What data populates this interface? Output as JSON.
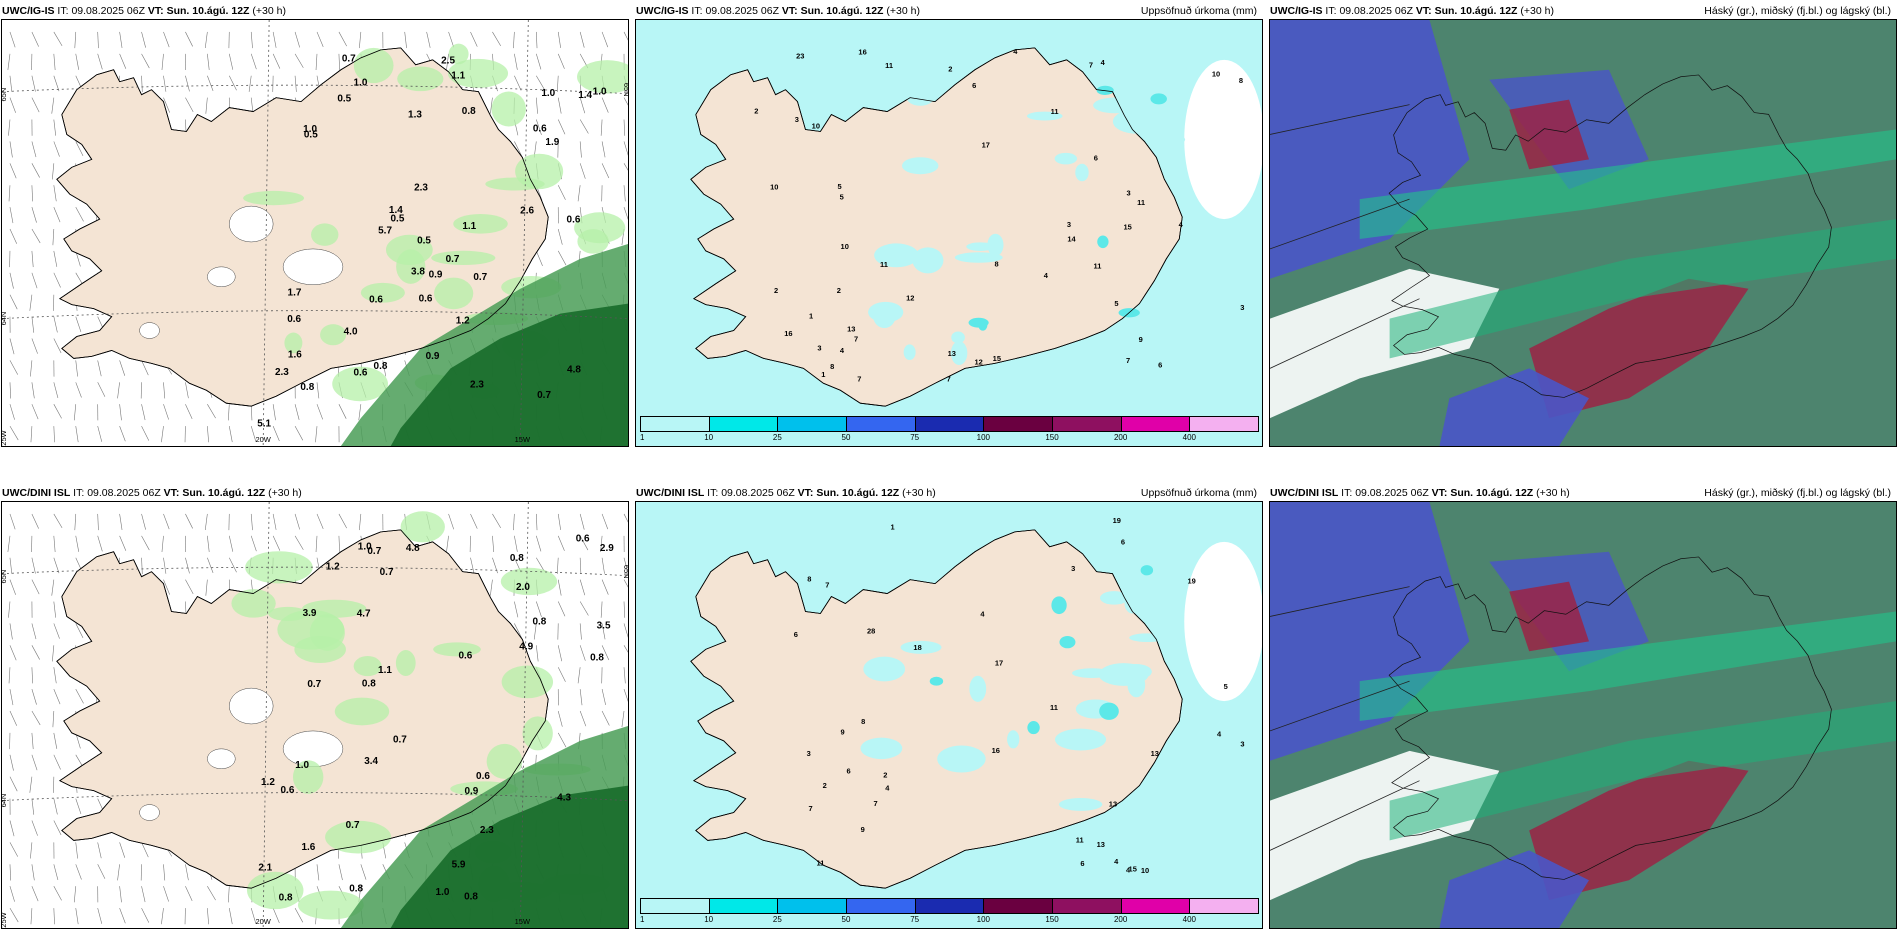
{
  "colors": {
    "land": "#f4e4d4",
    "precip_light": "#b8f6f6",
    "precip_medium": "#5ce8e8",
    "green_light": "#b6f0a8",
    "green_dark": "#176b2a",
    "cloud_high": "#2e6e55",
    "cloud_mid": "#4a55c8",
    "cloud_low": "#9b2345"
  },
  "panels": [
    {
      "model": "UWC/IG-IS",
      "it_label": "IT:",
      "it_value": "09.08.2025 06Z",
      "vt_label": "VT:",
      "vt_value": "Sun. 10.ágú. 12Z",
      "lead": "(+30 h)",
      "product": "",
      "labels": [
        "0.5",
        "0.6",
        "0.5",
        "0.7",
        "0.6",
        "0.5",
        "1.1",
        "0.6",
        "0.6",
        "1.4",
        "0.6",
        "1.0",
        "1.0",
        "1.0",
        "0.8",
        "1.1",
        "0.8",
        "1.9",
        "2.5",
        "2.3",
        "1.7",
        "1.4",
        "2.6",
        "2.3",
        "3.8",
        "4.8",
        "4.0",
        "2.3",
        "5.7",
        "1.0",
        "0.7",
        "0.6",
        "0.9",
        "0.7",
        "1.2",
        "0.8",
        "0.9",
        "5.1",
        "0.5",
        "0.7",
        "1.6",
        "1.3"
      ],
      "axis": {
        "lat1": "65N",
        "lat2": "64N",
        "lon1": "25W",
        "lon2": "20W",
        "lon3": "15W",
        "lat1r": "65N"
      }
    },
    {
      "model": "UWC/IG-IS",
      "it_label": "IT:",
      "it_value": "09.08.2025 06Z",
      "vt_label": "VT:",
      "vt_value": "Sun. 10.ágú. 12Z",
      "lead": "(+30 h)",
      "product": "Uppsöfnuð úrkoma (mm)",
      "labels": [
        "2",
        "4",
        "3",
        "4",
        "3",
        "1",
        "11",
        "5",
        "15",
        "10",
        "6",
        "7",
        "9",
        "7",
        "5",
        "13",
        "14",
        "2",
        "4",
        "2",
        "4",
        "12",
        "7",
        "3",
        "6",
        "17",
        "3",
        "16",
        "5",
        "10",
        "15",
        "3",
        "2",
        "1",
        "7",
        "11",
        "12",
        "16",
        "23",
        "10",
        "8",
        "11",
        "6",
        "4",
        "11",
        "7",
        "10",
        "8",
        "13",
        "11",
        "8"
      ],
      "colorbar": [
        "1",
        "10",
        "25",
        "50",
        "75",
        "100",
        "150",
        "200",
        "400"
      ]
    },
    {
      "model": "UWC/IG-IS",
      "it_label": "IT:",
      "it_value": "09.08.2025 06Z",
      "vt_label": "VT:",
      "vt_value": "Sun. 10.ágú. 12Z",
      "lead": "(+30 h)",
      "product": "Háský (gr.), miðský (fj.bl.) og lágský (bl.)"
    },
    {
      "model": "UWC/DINI ISL",
      "it_label": "IT:",
      "it_value": "09.08.2025 06Z",
      "vt_label": "VT:",
      "vt_value": "Sun. 10.ágú. 12Z",
      "lead": "(+30 h)",
      "product": "",
      "labels": [
        "0.6",
        "0.8",
        "0.7",
        "0.6",
        "0.8",
        "0.7",
        "2.3",
        "3.5",
        "0.6",
        "0.6",
        "2.9",
        "0.8",
        "0.8",
        "0.7",
        "2.0",
        "4.8",
        "3.4",
        "4.7",
        "2.1",
        "1.0",
        "0.8",
        "1.6",
        "0.9",
        "1.2",
        "3.9",
        "5.9",
        "4.3",
        "1.1",
        "1.0",
        "0.7",
        "1.0",
        "0.8",
        "1.2",
        "4.9",
        "0.8",
        "0.7"
      ],
      "axis": {
        "lat1": "65N",
        "lat2": "64N",
        "lon1": "25W",
        "lon2": "20W",
        "lon3": "15W",
        "lat1r": "65N"
      }
    },
    {
      "model": "UWC/DINI ISL",
      "it_label": "IT:",
      "it_value": "09.08.2025 06Z",
      "vt_label": "VT:",
      "vt_value": "Sun. 10.ágú. 12Z",
      "lead": "(+30 h)",
      "product": "Uppsöfnuð úrkoma (mm)",
      "labels": [
        "3",
        "4",
        "6",
        "7",
        "11",
        "19",
        "9",
        "28",
        "2",
        "3",
        "3",
        "4",
        "4",
        "6",
        "11",
        "13",
        "16",
        "17",
        "8",
        "6",
        "2",
        "1",
        "4",
        "7",
        "18",
        "11",
        "15",
        "13",
        "7",
        "9",
        "19",
        "13",
        "10",
        "4",
        "6",
        "5",
        "8"
      ],
      "colorbar": [
        "1",
        "10",
        "25",
        "50",
        "75",
        "100",
        "150",
        "200",
        "400"
      ]
    },
    {
      "model": "UWC/DINI ISL",
      "it_label": "IT:",
      "it_value": "09.08.2025 06Z",
      "vt_label": "VT:",
      "vt_value": "Sun. 10.ágú. 12Z",
      "lead": "(+30 h)",
      "product": "Háský (gr.), miðský (fj.bl.) og lágský (bl.)"
    }
  ]
}
